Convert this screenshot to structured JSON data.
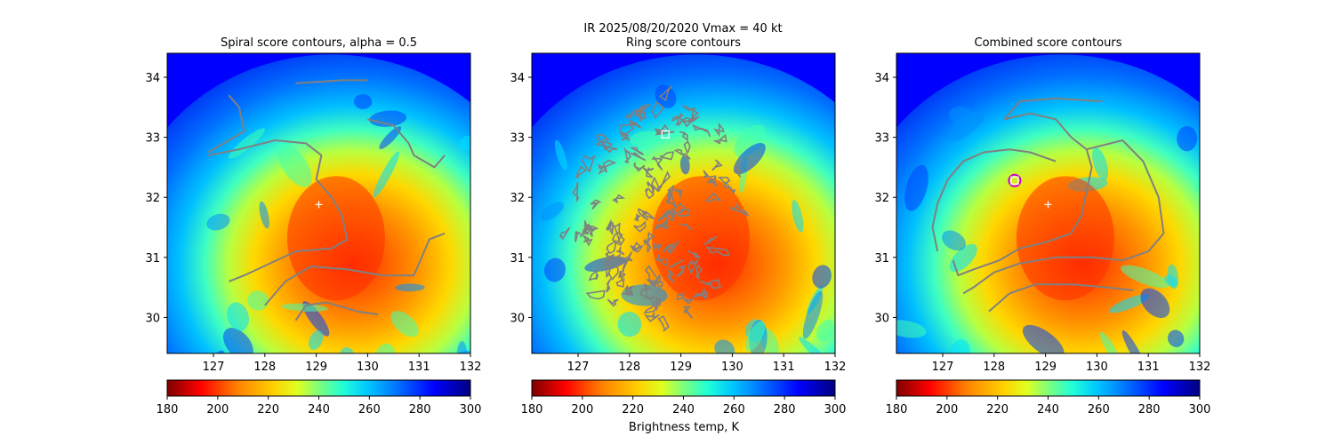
{
  "figure": {
    "suptitle_line1": "IR  2025/08/20/2020    Vmax = 40 kt",
    "colorbar_label": "Brightness temp, K"
  },
  "colors": {
    "contour": "#808080",
    "center_marker": "#ffffff",
    "square_marker": "#ffffff",
    "circle_marker": "#cc00cc",
    "background_cold": "#0000ff"
  },
  "chart_data": [
    {
      "type": "heatmap",
      "panel": "spiral",
      "title": "Spiral score contours, alpha =  0.5",
      "xlim": [
        126.1,
        132.0
      ],
      "ylim": [
        29.4,
        34.4
      ],
      "xticks": [
        127,
        128,
        129,
        130,
        131,
        132
      ],
      "yticks": [
        30,
        31,
        32,
        33,
        34
      ],
      "grid": false,
      "field": "IR brightness temperature (K)",
      "warm_core_center": [
        129.3,
        31.2
      ],
      "center_marker": [
        129.05,
        31.88
      ],
      "contours": [
        [
          [
            126.9,
            32.7
          ],
          [
            127.5,
            32.8
          ],
          [
            128.2,
            32.95
          ],
          [
            128.8,
            32.9
          ],
          [
            129.1,
            32.7
          ],
          [
            129.0,
            32.3
          ],
          [
            129.3,
            32.0
          ],
          [
            129.5,
            31.7
          ],
          [
            129.6,
            31.3
          ],
          [
            129.3,
            31.15
          ],
          [
            128.6,
            31.1
          ],
          [
            128.1,
            30.9
          ],
          [
            127.6,
            30.7
          ],
          [
            127.3,
            30.6
          ]
        ],
        [
          [
            126.9,
            32.75
          ],
          [
            127.2,
            32.9
          ],
          [
            127.6,
            33.1
          ],
          [
            127.5,
            33.5
          ],
          [
            127.3,
            33.7
          ]
        ],
        [
          [
            128.6,
            33.9
          ],
          [
            129.5,
            33.95
          ],
          [
            130.0,
            33.95
          ]
        ],
        [
          [
            130.0,
            33.3
          ],
          [
            130.5,
            33.2
          ],
          [
            130.8,
            32.9
          ],
          [
            130.9,
            32.7
          ],
          [
            131.3,
            32.5
          ],
          [
            131.5,
            32.7
          ]
        ],
        [
          [
            128.0,
            30.2
          ],
          [
            128.4,
            30.6
          ],
          [
            128.9,
            30.85
          ],
          [
            129.6,
            30.8
          ],
          [
            130.3,
            30.7
          ],
          [
            130.9,
            30.7
          ],
          [
            131.0,
            30.9
          ],
          [
            131.2,
            31.3
          ],
          [
            131.5,
            31.4
          ]
        ],
        [
          [
            128.6,
            29.95
          ],
          [
            128.8,
            30.2
          ],
          [
            129.2,
            30.25
          ],
          [
            129.8,
            30.1
          ],
          [
            130.2,
            30.05
          ]
        ]
      ]
    },
    {
      "type": "heatmap",
      "panel": "ring",
      "title": "Ring score contours",
      "xlim": [
        126.1,
        132.0
      ],
      "ylim": [
        29.4,
        34.4
      ],
      "xticks": [
        127,
        128,
        129,
        130,
        131,
        132
      ],
      "yticks": [
        30,
        31,
        32,
        33,
        34
      ],
      "grid": false,
      "field": "IR brightness temperature (K)",
      "warm_core_center": [
        129.3,
        31.2
      ],
      "square_marker": [
        128.7,
        33.05
      ],
      "dense_contour_region": {
        "center": [
          128.55,
          31.8
        ],
        "radius_deg_x": 1.75,
        "radius_deg_y": 1.85
      },
      "dense_contour_extent_note": "contours fill western and central areas"
    },
    {
      "type": "heatmap",
      "panel": "combined",
      "title": "Combined score contours",
      "xlim": [
        126.1,
        132.0
      ],
      "ylim": [
        29.4,
        34.4
      ],
      "xticks": [
        127,
        128,
        129,
        130,
        131,
        132
      ],
      "yticks": [
        30,
        31,
        32,
        33,
        34
      ],
      "grid": false,
      "field": "IR brightness temperature (K)",
      "warm_core_center": [
        129.3,
        31.2
      ],
      "center_marker": [
        129.05,
        31.88
      ],
      "square_marker": [
        128.4,
        32.28
      ],
      "circle_marker": [
        128.4,
        32.28
      ],
      "contours": [
        [
          [
            128.2,
            33.3
          ],
          [
            128.7,
            33.4
          ],
          [
            129.2,
            33.3
          ],
          [
            129.5,
            33.0
          ],
          [
            129.8,
            32.8
          ],
          [
            129.9,
            32.5
          ],
          [
            129.8,
            32.1
          ],
          [
            129.7,
            31.7
          ],
          [
            129.5,
            31.4
          ],
          [
            129.0,
            31.25
          ],
          [
            128.5,
            31.15
          ],
          [
            128.1,
            30.95
          ],
          [
            127.6,
            30.8
          ],
          [
            127.3,
            30.7
          ],
          [
            127.2,
            30.95
          ]
        ],
        [
          [
            126.9,
            31.1
          ],
          [
            126.8,
            31.5
          ],
          [
            126.9,
            31.9
          ],
          [
            127.1,
            32.3
          ],
          [
            127.4,
            32.6
          ],
          [
            127.8,
            32.75
          ],
          [
            128.3,
            32.8
          ],
          [
            128.7,
            32.75
          ],
          [
            129.2,
            32.6
          ]
        ],
        [
          [
            128.2,
            33.3
          ],
          [
            128.5,
            33.6
          ],
          [
            129.2,
            33.65
          ],
          [
            130.1,
            33.6
          ]
        ],
        [
          [
            129.8,
            32.8
          ],
          [
            130.5,
            32.95
          ],
          [
            130.9,
            32.6
          ],
          [
            131.2,
            32.0
          ],
          [
            131.3,
            31.4
          ],
          [
            131.0,
            31.1
          ],
          [
            130.5,
            30.95
          ],
          [
            129.9,
            31.0
          ],
          [
            129.2,
            31.0
          ],
          [
            128.5,
            30.9
          ],
          [
            128.0,
            30.75
          ],
          [
            127.6,
            30.5
          ],
          [
            127.4,
            30.4
          ]
        ],
        [
          [
            127.9,
            30.1
          ],
          [
            128.3,
            30.4
          ],
          [
            128.8,
            30.55
          ],
          [
            129.5,
            30.55
          ],
          [
            130.2,
            30.5
          ],
          [
            130.7,
            30.45
          ]
        ]
      ]
    }
  ],
  "colorbars": [
    {
      "ticks": [
        "180",
        "200",
        "220",
        "240",
        "260",
        "280",
        "300"
      ],
      "min": 180,
      "max": 300,
      "cmap": "jet_r"
    },
    {
      "ticks": [
        "180",
        "200",
        "220",
        "240",
        "260",
        "280",
        "300"
      ],
      "min": 180,
      "max": 300,
      "cmap": "jet_r"
    },
    {
      "ticks": [
        "180",
        "200",
        "220",
        "240",
        "260",
        "280",
        "300"
      ],
      "min": 180,
      "max": 300,
      "cmap": "jet_r"
    }
  ]
}
